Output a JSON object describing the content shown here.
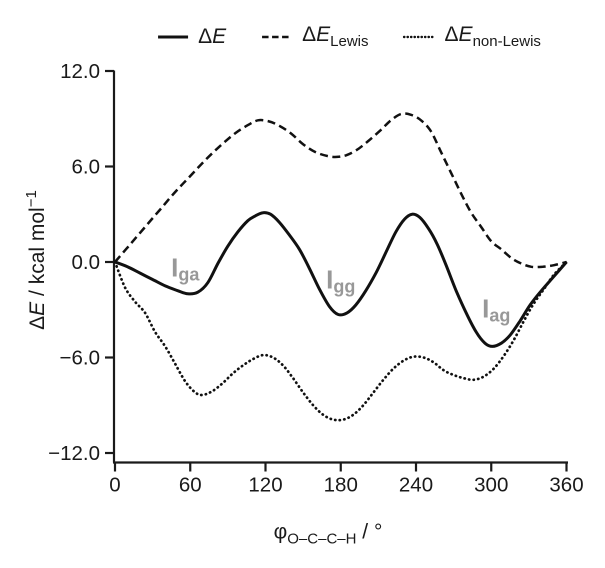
{
  "figure": {
    "background": "#ffffff"
  },
  "colors": {
    "line": "#111111",
    "axis": "#1a1a1a",
    "text": "#1a1a1a",
    "annotation": "#989898"
  },
  "legend": {
    "items": [
      {
        "style": "solid",
        "delta": "Δ",
        "e": "E",
        "sub": ""
      },
      {
        "style": "dashed",
        "delta": "Δ",
        "e": "E",
        "sub": "Lewis"
      },
      {
        "style": "dotted",
        "delta": "Δ",
        "e": "E",
        "sub": "non-Lewis"
      }
    ]
  },
  "axes": {
    "y": {
      "delta": "Δ",
      "e": "E",
      "unit": " / kcal mol",
      "sup": "−1",
      "tick_labels": [
        "12.0",
        "6.0",
        "0.0",
        "−6.0",
        "−12.0"
      ]
    },
    "x": {
      "phi": "φ",
      "sub": "O–C–C–H",
      "rest": " / °",
      "tick_labels": [
        "0",
        "60",
        "120",
        "180",
        "240",
        "300",
        "360"
      ]
    }
  },
  "chart_data": {
    "type": "line",
    "title": "",
    "xlabel": "φ(O–C–C–H) / °",
    "ylabel": "ΔE / kcal mol⁻¹",
    "xlim": [
      0,
      360
    ],
    "ylim": [
      -12.6,
      12.0
    ],
    "x_ticks": [
      0,
      60,
      120,
      180,
      240,
      300,
      360
    ],
    "y_ticks": [
      12.0,
      6.0,
      0.0,
      -6.0,
      -12.0
    ],
    "grid": false,
    "legend_position": "top",
    "series": [
      {
        "name": "ΔE",
        "style": "solid",
        "points": [
          [
            0,
            0
          ],
          [
            10,
            -0.3
          ],
          [
            20,
            -0.7
          ],
          [
            30,
            -1.1
          ],
          [
            40,
            -1.5
          ],
          [
            50,
            -1.8
          ],
          [
            58,
            -2.0
          ],
          [
            66,
            -1.9
          ],
          [
            74,
            -1.3
          ],
          [
            82,
            -0.1
          ],
          [
            90,
            1.0
          ],
          [
            98,
            1.9
          ],
          [
            106,
            2.6
          ],
          [
            112,
            2.9
          ],
          [
            118,
            3.1
          ],
          [
            124,
            3.0
          ],
          [
            131,
            2.5
          ],
          [
            139,
            1.7
          ],
          [
            147,
            0.8
          ],
          [
            155,
            -0.4
          ],
          [
            163,
            -1.7
          ],
          [
            171,
            -2.8
          ],
          [
            178,
            -3.3
          ],
          [
            185,
            -3.2
          ],
          [
            192,
            -2.7
          ],
          [
            200,
            -1.8
          ],
          [
            208,
            -0.7
          ],
          [
            216,
            0.6
          ],
          [
            224,
            1.9
          ],
          [
            231,
            2.7
          ],
          [
            237,
            3.0
          ],
          [
            243,
            2.8
          ],
          [
            250,
            2.1
          ],
          [
            257,
            1.1
          ],
          [
            264,
            -0.2
          ],
          [
            272,
            -1.8
          ],
          [
            280,
            -3.2
          ],
          [
            288,
            -4.4
          ],
          [
            295,
            -5.1
          ],
          [
            301,
            -5.3
          ],
          [
            308,
            -5.1
          ],
          [
            315,
            -4.6
          ],
          [
            323,
            -3.7
          ],
          [
            331,
            -2.7
          ],
          [
            340,
            -1.8
          ],
          [
            350,
            -0.9
          ],
          [
            360,
            0
          ]
        ]
      },
      {
        "name": "ΔE_Lewis",
        "style": "dashed",
        "points": [
          [
            0,
            0
          ],
          [
            12,
            1.1
          ],
          [
            24,
            2.2
          ],
          [
            36,
            3.3
          ],
          [
            48,
            4.4
          ],
          [
            60,
            5.4
          ],
          [
            72,
            6.4
          ],
          [
            84,
            7.3
          ],
          [
            96,
            8.1
          ],
          [
            106,
            8.6
          ],
          [
            114,
            8.9
          ],
          [
            122,
            8.85
          ],
          [
            130,
            8.6
          ],
          [
            140,
            8.1
          ],
          [
            150,
            7.4
          ],
          [
            160,
            6.9
          ],
          [
            170,
            6.65
          ],
          [
            177,
            6.6
          ],
          [
            184,
            6.7
          ],
          [
            192,
            7.0
          ],
          [
            202,
            7.6
          ],
          [
            212,
            8.3
          ],
          [
            220,
            8.9
          ],
          [
            228,
            9.3
          ],
          [
            236,
            9.25
          ],
          [
            244,
            8.9
          ],
          [
            252,
            8.2
          ],
          [
            260,
            6.9
          ],
          [
            268,
            5.6
          ],
          [
            276,
            4.3
          ],
          [
            284,
            3.1
          ],
          [
            292,
            2.2
          ],
          [
            300,
            1.3
          ],
          [
            308,
            0.8
          ],
          [
            316,
            0.25
          ],
          [
            324,
            -0.1
          ],
          [
            332,
            -0.3
          ],
          [
            341,
            -0.3
          ],
          [
            350,
            -0.2
          ],
          [
            360,
            0
          ]
        ]
      },
      {
        "name": "ΔE_non-Lewis",
        "style": "dotted",
        "points": [
          [
            0,
            0
          ],
          [
            8,
            -1.6
          ],
          [
            16,
            -2.5
          ],
          [
            24,
            -3.2
          ],
          [
            32,
            -4.4
          ],
          [
            40,
            -5.3
          ],
          [
            48,
            -6.4
          ],
          [
            56,
            -7.5
          ],
          [
            64,
            -8.2
          ],
          [
            70,
            -8.35
          ],
          [
            78,
            -8.1
          ],
          [
            86,
            -7.6
          ],
          [
            94,
            -7.0
          ],
          [
            102,
            -6.5
          ],
          [
            110,
            -6.1
          ],
          [
            118,
            -5.85
          ],
          [
            126,
            -6.0
          ],
          [
            134,
            -6.5
          ],
          [
            142,
            -7.3
          ],
          [
            150,
            -8.2
          ],
          [
            158,
            -9.0
          ],
          [
            166,
            -9.6
          ],
          [
            174,
            -9.9
          ],
          [
            182,
            -9.9
          ],
          [
            190,
            -9.6
          ],
          [
            198,
            -9.0
          ],
          [
            206,
            -8.2
          ],
          [
            214,
            -7.4
          ],
          [
            222,
            -6.7
          ],
          [
            230,
            -6.2
          ],
          [
            238,
            -5.95
          ],
          [
            246,
            -6.0
          ],
          [
            254,
            -6.3
          ],
          [
            262,
            -6.8
          ],
          [
            270,
            -7.1
          ],
          [
            278,
            -7.3
          ],
          [
            286,
            -7.4
          ],
          [
            294,
            -7.2
          ],
          [
            302,
            -6.7
          ],
          [
            310,
            -5.9
          ],
          [
            318,
            -4.9
          ],
          [
            326,
            -3.7
          ],
          [
            334,
            -2.6
          ],
          [
            342,
            -1.7
          ],
          [
            350,
            -0.8
          ],
          [
            360,
            0
          ]
        ]
      }
    ],
    "annotations": [
      {
        "label": "I",
        "sub": "ga",
        "x": 56,
        "y": -0.45
      },
      {
        "label": "I",
        "sub": "gg",
        "x": 180,
        "y": -1.2
      },
      {
        "label": "I",
        "sub": "ag",
        "x": 304,
        "y": -3.0
      }
    ]
  }
}
